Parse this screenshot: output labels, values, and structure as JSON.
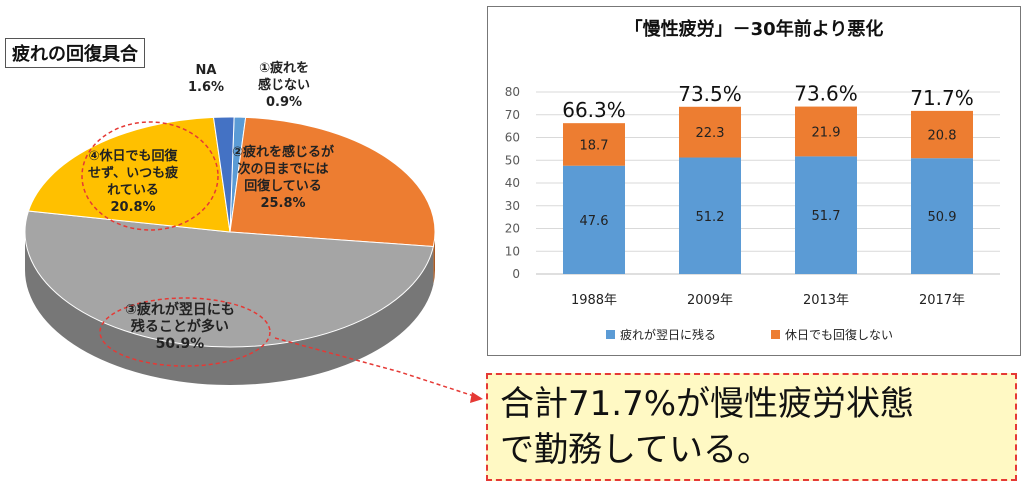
{
  "pie": {
    "title": "疲れの回復具合",
    "slices": [
      {
        "key": "fatigue_none",
        "label_lines": [
          "①疲れを",
          "感じない"
        ],
        "percent": 0.9,
        "percent_label": "0.9%",
        "color": "#5b9bd5"
      },
      {
        "key": "recover_next_day",
        "label_lines": [
          "②疲れを感じるが",
          "次の日までには",
          "回復している"
        ],
        "percent": 25.8,
        "percent_label": "25.8%",
        "color": "#ed7d31"
      },
      {
        "key": "remain_next_day",
        "label_lines": [
          "③疲れが翌日にも",
          "残ることが多い"
        ],
        "percent": 50.9,
        "percent_label": "50.9%",
        "color": "#a5a5a5"
      },
      {
        "key": "always_tired",
        "label_lines": [
          "④休日でも回復",
          "せず、いつも疲",
          "れている"
        ],
        "percent": 20.8,
        "percent_label": "20.8%",
        "color": "#ffc000"
      },
      {
        "key": "na",
        "label_lines": [
          "NA"
        ],
        "percent": 1.6,
        "percent_label": "1.6%",
        "color": "#4472c4"
      }
    ]
  },
  "chart_data": {
    "type": "bar",
    "stacked": true,
    "title": "「慢性疲労」－30年前より悪化",
    "categories": [
      "1988年",
      "2009年",
      "2013年",
      "2017年"
    ],
    "series": [
      {
        "name": "疲れが翌日に残る",
        "values": [
          47.6,
          51.2,
          51.7,
          50.9
        ],
        "color": "#5b9bd5"
      },
      {
        "name": "休日でも回復しない",
        "values": [
          18.7,
          22.3,
          21.9,
          20.8
        ],
        "color": "#ed7d31"
      }
    ],
    "totals": [
      "66.3%",
      "73.5%",
      "73.6%",
      "71.7%"
    ],
    "ylim": [
      0,
      80
    ],
    "yticks": [
      0,
      10,
      20,
      30,
      40,
      50,
      60,
      70,
      80
    ],
    "grid": true,
    "legend_position": "bottom"
  },
  "summary": {
    "line1": "合計71.7%が慢性疲労状態",
    "line2": "で勤務している。"
  }
}
